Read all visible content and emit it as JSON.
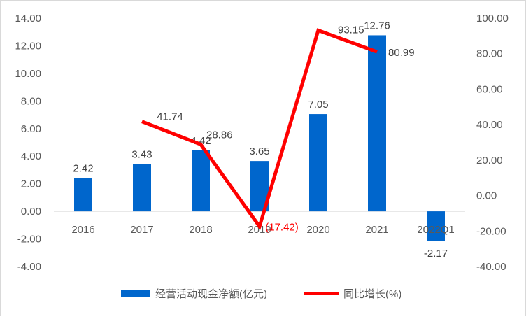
{
  "chart_data": {
    "type": "bar",
    "categories": [
      "2016",
      "2017",
      "2018",
      "2019",
      "2020",
      "2021",
      "2022Q1"
    ],
    "series": [
      {
        "name": "经营活动现金净额(亿元)",
        "kind": "bar",
        "axis": "left",
        "color": "#0066cc",
        "values": [
          2.42,
          3.43,
          4.42,
          3.65,
          7.05,
          12.76,
          -2.17
        ],
        "labels": [
          "2.42",
          "3.43",
          "4.42",
          "3.65",
          "7.05",
          "12.76",
          "-2.17"
        ]
      },
      {
        "name": "同比增长(%)",
        "kind": "line",
        "axis": "right",
        "color": "#ff0000",
        "values": [
          null,
          41.74,
          28.86,
          -17.42,
          93.15,
          80.99,
          null
        ],
        "labels": [
          "",
          "41.74",
          "28.86",
          "(17.42)",
          "93.15",
          "80.99",
          ""
        ]
      }
    ],
    "left_axis": {
      "ylim": [
        -4,
        14
      ],
      "ticks": [
        -4,
        -2,
        0,
        2,
        4,
        6,
        8,
        10,
        12,
        14
      ],
      "tick_labels": [
        "-4.00",
        "-2.00",
        "0.00",
        "2.00",
        "4.00",
        "6.00",
        "8.00",
        "10.00",
        "12.00",
        "14.00"
      ]
    },
    "right_axis": {
      "ylim": [
        -40,
        100
      ],
      "ticks": [
        -40,
        -20,
        0,
        20,
        40,
        60,
        80,
        100
      ],
      "tick_labels": [
        "-40.00",
        "-20.00",
        "0.00",
        "20.00",
        "40.00",
        "60.00",
        "80.00",
        "100.00"
      ]
    },
    "legend": {
      "position": "bottom",
      "entries": [
        "经营活动现金净额(亿元)",
        "同比增长(%)"
      ]
    },
    "grid": false
  }
}
